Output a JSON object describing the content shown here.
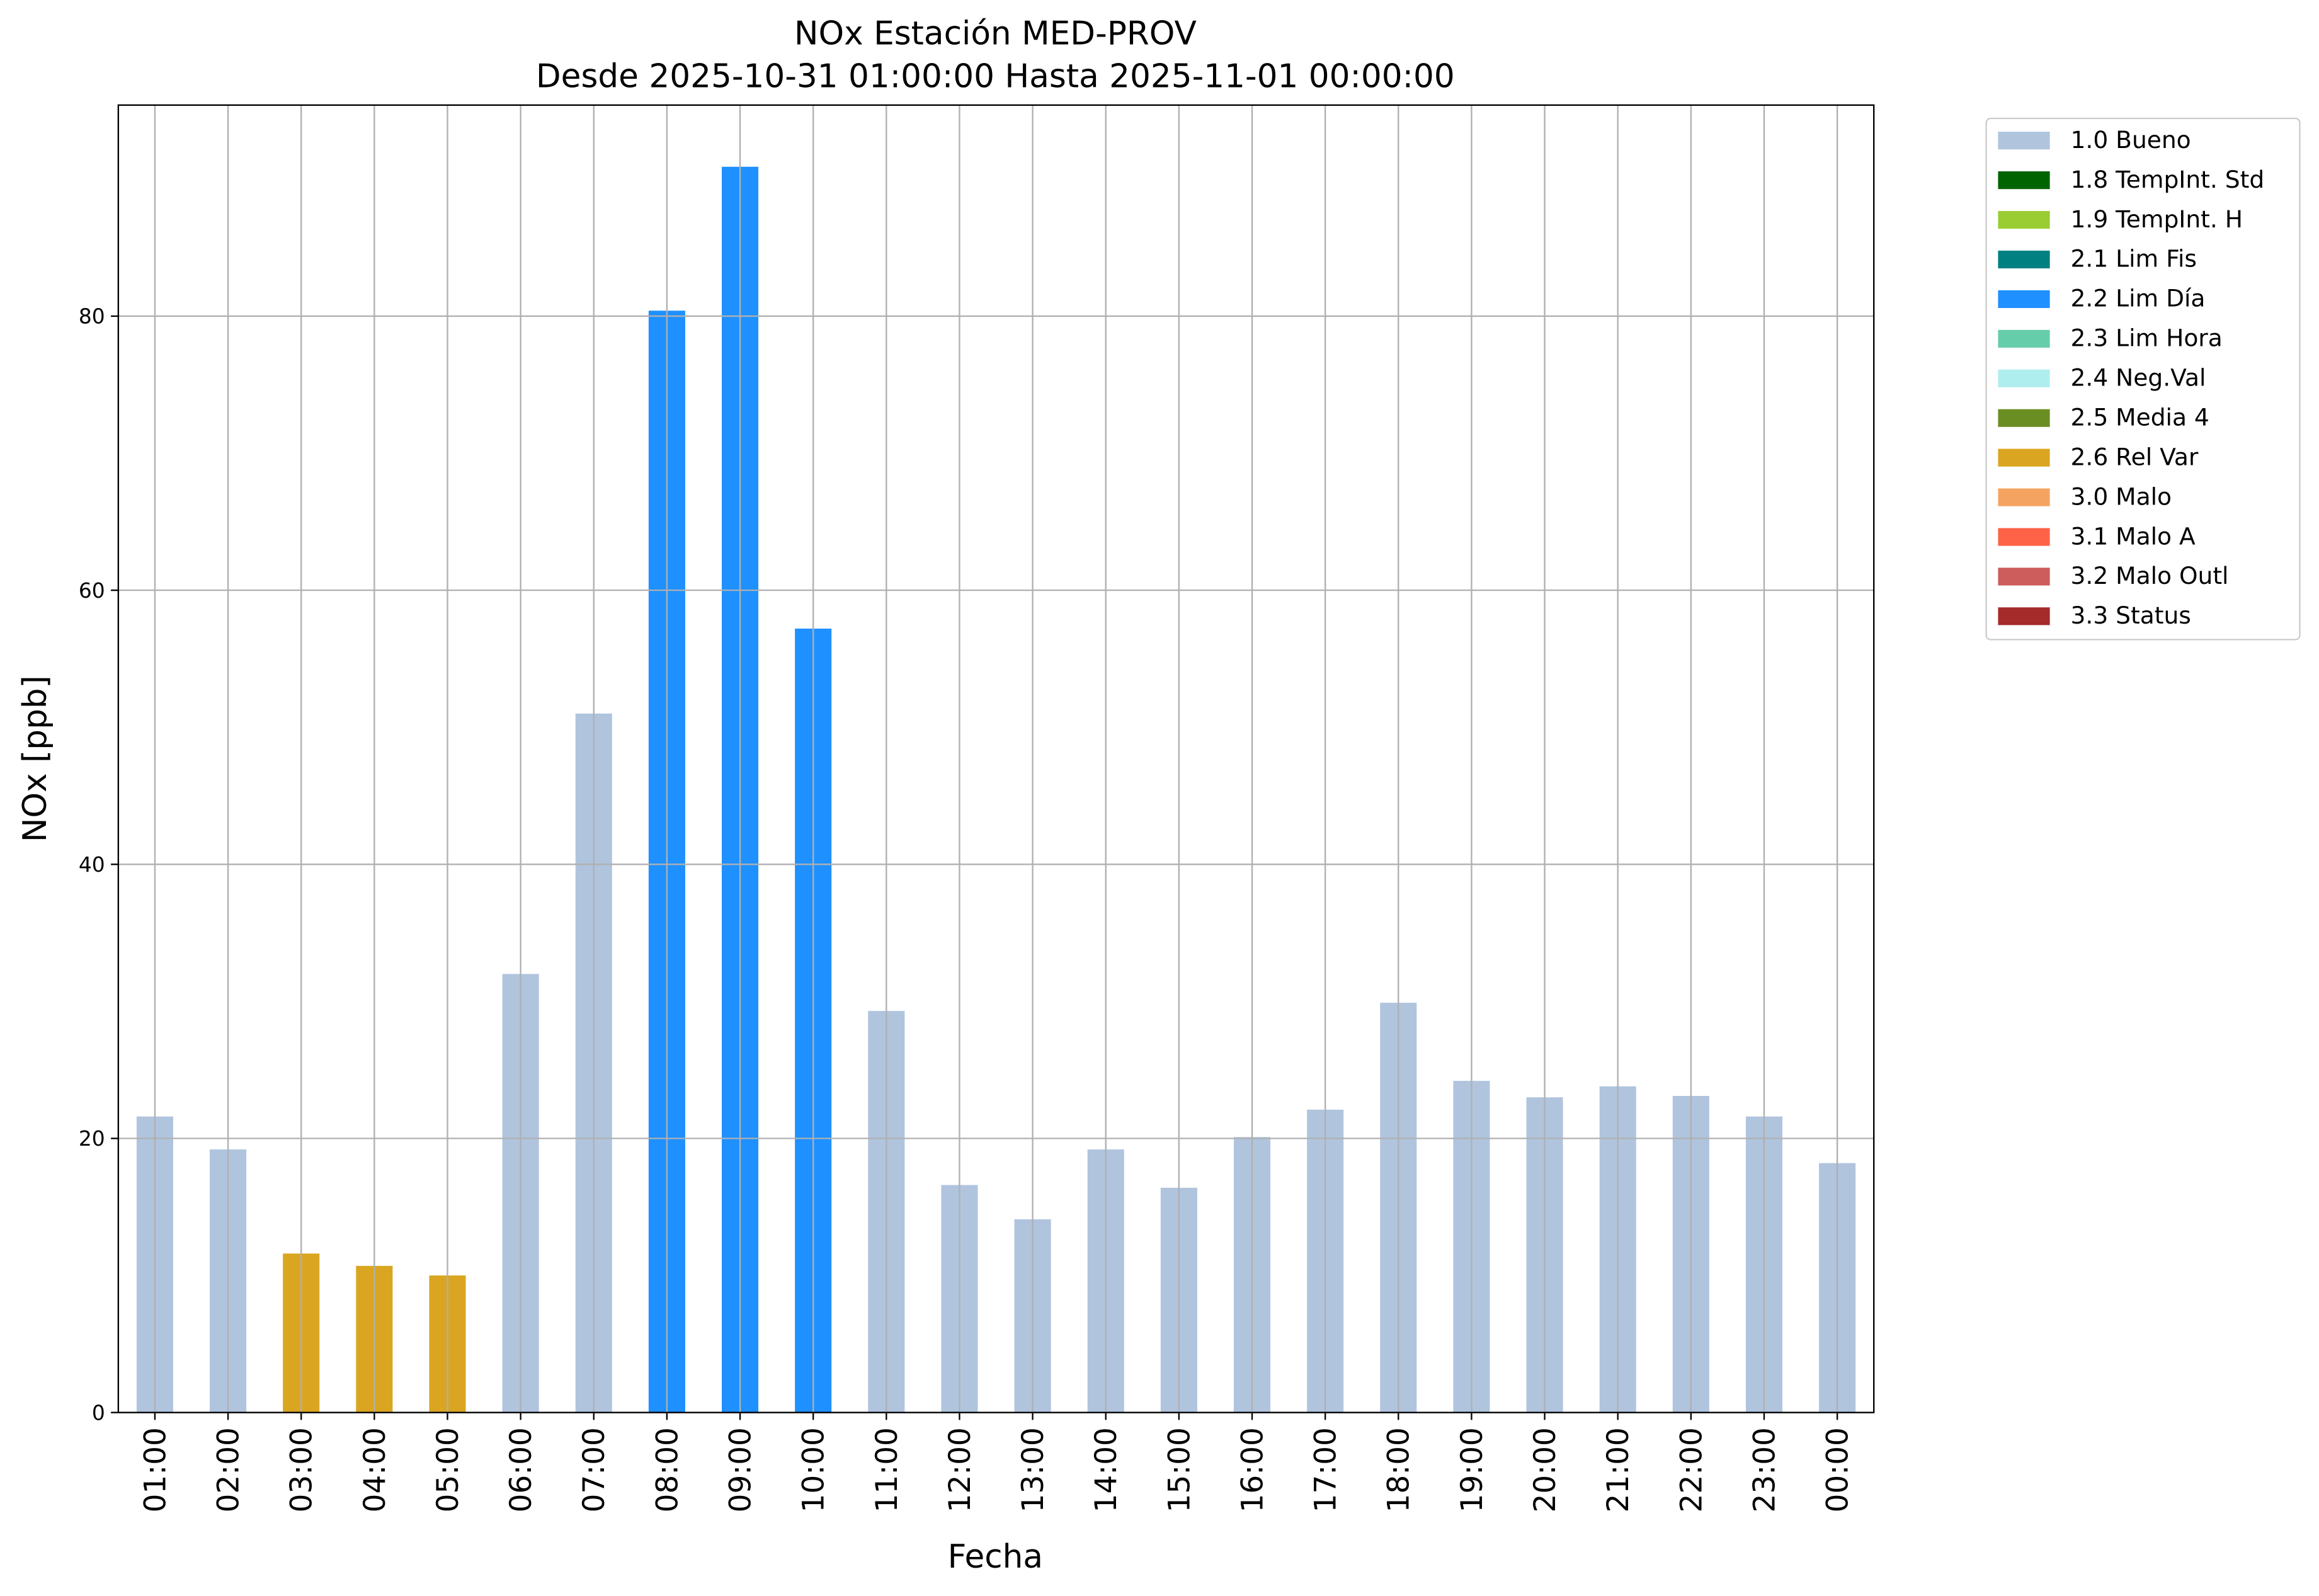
{
  "chart_data": {
    "type": "bar",
    "stacked": true,
    "title": "NOx Estación MED-PROV",
    "subtitle": "Desde 2025-10-31 01:00:00 Hasta 2025-11-01 00:00:00",
    "x_label": "Fecha",
    "y_label": "NOx [ppb]",
    "categories": [
      "01:00",
      "02:00",
      "03:00",
      "04:00",
      "05:00",
      "06:00",
      "07:00",
      "08:00",
      "09:00",
      "10:00",
      "11:00",
      "12:00",
      "13:00",
      "14:00",
      "15:00",
      "16:00",
      "17:00",
      "18:00",
      "19:00",
      "20:00",
      "21:00",
      "22:00",
      "23:00",
      "00:00"
    ],
    "series": [
      {
        "name": "1.0 Bueno",
        "color": "#b0c4de",
        "values": [
          21.6,
          19.2,
          null,
          null,
          null,
          32.0,
          51.0,
          null,
          null,
          null,
          29.3,
          16.6,
          14.1,
          19.2,
          16.4,
          20.1,
          22.1,
          29.9,
          24.2,
          23.0,
          23.8,
          23.1,
          21.6,
          18.2
        ]
      },
      {
        "name": "1.8 TempInt. Std",
        "color": "#006400",
        "values": [
          null,
          null,
          null,
          null,
          null,
          null,
          null,
          null,
          null,
          null,
          null,
          null,
          null,
          null,
          null,
          null,
          null,
          null,
          null,
          null,
          null,
          null,
          null,
          null
        ]
      },
      {
        "name": "1.9 TempInt. H",
        "color": "#9acd32",
        "values": [
          null,
          null,
          null,
          null,
          null,
          null,
          null,
          null,
          null,
          null,
          null,
          null,
          null,
          null,
          null,
          null,
          null,
          null,
          null,
          null,
          null,
          null,
          null,
          null
        ]
      },
      {
        "name": "2.1 Lim Fis",
        "color": "#008080",
        "values": [
          null,
          null,
          null,
          null,
          null,
          null,
          null,
          null,
          null,
          null,
          null,
          null,
          null,
          null,
          null,
          null,
          null,
          null,
          null,
          null,
          null,
          null,
          null,
          null
        ]
      },
      {
        "name": "2.2 Lim Día",
        "color": "#1e90ff",
        "values": [
          null,
          null,
          null,
          null,
          null,
          null,
          null,
          80.4,
          90.9,
          57.2,
          null,
          null,
          null,
          null,
          null,
          null,
          null,
          null,
          null,
          null,
          null,
          null,
          null,
          null
        ]
      },
      {
        "name": "2.3 Lim Hora",
        "color": "#66cdaa",
        "values": [
          null,
          null,
          null,
          null,
          null,
          null,
          null,
          null,
          null,
          null,
          null,
          null,
          null,
          null,
          null,
          null,
          null,
          null,
          null,
          null,
          null,
          null,
          null,
          null
        ]
      },
      {
        "name": "2.4 Neg.Val",
        "color": "#afeeee",
        "values": [
          null,
          null,
          null,
          null,
          null,
          null,
          null,
          null,
          null,
          null,
          null,
          null,
          null,
          null,
          null,
          null,
          null,
          null,
          null,
          null,
          null,
          null,
          null,
          null
        ]
      },
      {
        "name": "2.5 Media 4",
        "color": "#6b8e23",
        "values": [
          null,
          null,
          null,
          null,
          null,
          null,
          null,
          null,
          null,
          null,
          null,
          null,
          null,
          null,
          null,
          null,
          null,
          null,
          null,
          null,
          null,
          null,
          null,
          null
        ]
      },
      {
        "name": "2.6 Rel Var",
        "color": "#daa520",
        "values": [
          null,
          null,
          11.6,
          10.7,
          10.0,
          null,
          null,
          null,
          null,
          null,
          null,
          null,
          null,
          null,
          null,
          null,
          null,
          null,
          null,
          null,
          null,
          null,
          null,
          null
        ]
      },
      {
        "name": "3.0 Malo",
        "color": "#f4a460",
        "values": [
          null,
          null,
          null,
          null,
          null,
          null,
          null,
          null,
          null,
          null,
          null,
          null,
          null,
          null,
          null,
          null,
          null,
          null,
          null,
          null,
          null,
          null,
          null,
          null
        ]
      },
      {
        "name": "3.1 Malo A",
        "color": "#ff6347",
        "values": [
          null,
          null,
          null,
          null,
          null,
          null,
          null,
          null,
          null,
          null,
          null,
          null,
          null,
          null,
          null,
          null,
          null,
          null,
          null,
          null,
          null,
          null,
          null,
          null
        ]
      },
      {
        "name": "3.2 Malo Outl",
        "color": "#cd5c5c",
        "values": [
          null,
          null,
          null,
          null,
          null,
          null,
          null,
          null,
          null,
          null,
          null,
          null,
          null,
          null,
          null,
          null,
          null,
          null,
          null,
          null,
          null,
          null,
          null,
          null
        ]
      },
      {
        "name": "3.3 Status",
        "color": "#a52a2a",
        "values": [
          null,
          null,
          null,
          null,
          null,
          null,
          null,
          null,
          null,
          null,
          null,
          null,
          null,
          null,
          null,
          null,
          null,
          null,
          null,
          null,
          null,
          null,
          null,
          null
        ]
      }
    ],
    "ylim": [
      0,
      95.4
    ],
    "yticks": [
      0,
      20,
      40,
      60,
      80
    ],
    "grid": true,
    "legend": "outside-upper-right"
  }
}
